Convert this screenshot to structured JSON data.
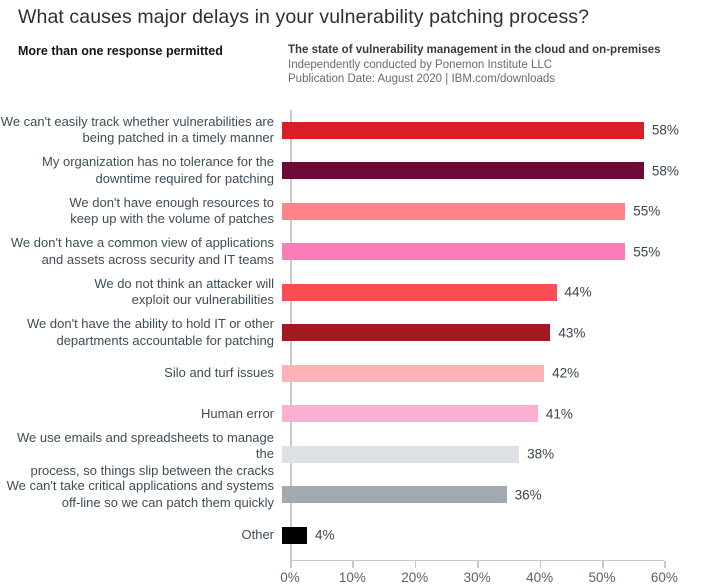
{
  "page": {
    "title": "What causes major delays in your vulnerability patching process?",
    "note": "More than one response permitted",
    "attribution": {
      "line1": "The state of vulnerability management in the cloud and on-premises",
      "line2": "Independently conducted by Ponemon Institute LLC",
      "line3": "Publication Date: August 2020 | IBM.com/downloads"
    }
  },
  "chart_data": {
    "type": "bar",
    "orientation": "horizontal",
    "title": "What causes major delays in your vulnerability patching process?",
    "subtitle": "More than one response permitted",
    "categories": [
      "We can't easily track whether vulnerabilities are\nbeing patched in a timely manner",
      "My organization has no tolerance for the\ndowntime required for patching",
      "We don't have enough resources to\nkeep up with the volume of patches",
      "We don't have a common view of applications\nand assets across security and IT teams",
      "We do not think an attacker will\nexploit our vulnerabilities",
      "We don't have the ability to hold IT or other\ndepartments accountable for patching",
      "Silo and turf issues",
      "Human error",
      "We use emails and spreadsheets to manage the\nprocess, so things slip between the cracks",
      "We can't take critical applications and systems\noff-line so we can patch them quickly",
      "Other"
    ],
    "values": [
      58,
      58,
      55,
      55,
      44,
      43,
      42,
      41,
      38,
      36,
      4
    ],
    "value_labels": [
      "58%",
      "58%",
      "55%",
      "55%",
      "44%",
      "43%",
      "42%",
      "41%",
      "38%",
      "36%",
      "4%"
    ],
    "bar_colors": [
      "#da1e28",
      "#6e0a37",
      "#ff8389",
      "#fb7db8",
      "#fa4d56",
      "#a2191f",
      "#ffb3b8",
      "#ffafd2",
      "#dde1e6",
      "#a2a9b0",
      "#000000"
    ],
    "xlabel": "",
    "ylabel": "",
    "xlim": [
      0,
      60
    ],
    "x_ticks": [
      "0%",
      "10%",
      "20%",
      "30%",
      "40%",
      "50%",
      "60%"
    ],
    "grid": false,
    "legend": false,
    "axis_color": "#c6cacd",
    "label_color": "#3f4d57"
  }
}
